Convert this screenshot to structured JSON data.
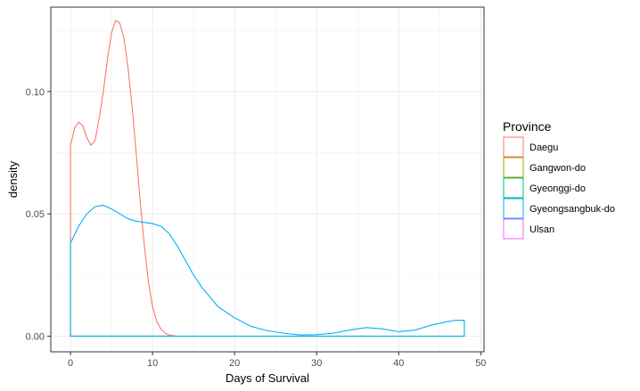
{
  "chart_data": {
    "type": "density",
    "xlabel": "Days of Survival",
    "ylabel": "density",
    "xlim": [
      -2.4,
      50.4
    ],
    "ylim": [
      -0.0064,
      0.1345
    ],
    "x_ticks": [
      0,
      10,
      20,
      30,
      40,
      50
    ],
    "x_tick_labels": [
      "0",
      "10",
      "20",
      "30",
      "40",
      "50"
    ],
    "y_ticks": [
      0.0,
      0.05,
      0.1
    ],
    "y_tick_labels": [
      "0.00",
      "0.05",
      "0.10"
    ],
    "grid": true,
    "legend": {
      "title": "Province",
      "position": "right",
      "entries": [
        {
          "label": "Daegu",
          "color": "#F8766D"
        },
        {
          "label": "Gangwon-do",
          "color": "#A3A500"
        },
        {
          "label": "Gyeonggi-do",
          "color": "#00BF7D"
        },
        {
          "label": "Gyeongsangbuk-do",
          "color": "#00B0F6"
        },
        {
          "label": "Ulsan",
          "color": "#E76BF3"
        }
      ]
    },
    "series": [
      {
        "name": "Daegu",
        "color": "#F8766D",
        "x": [
          0,
          0.5,
          1,
          1.5,
          2,
          2.5,
          3,
          3.5,
          4,
          4.5,
          5,
          5.5,
          6,
          6.5,
          7,
          7.5,
          8,
          8.5,
          9,
          9.5,
          10,
          10.5,
          11,
          11.5,
          12,
          12.5,
          13
        ],
        "y": [
          0.078,
          0.085,
          0.0875,
          0.086,
          0.081,
          0.078,
          0.08,
          0.089,
          0.1,
          0.113,
          0.124,
          0.129,
          0.128,
          0.122,
          0.11,
          0.094,
          0.075,
          0.055,
          0.037,
          0.022,
          0.012,
          0.006,
          0.003,
          0.0013,
          0.0005,
          0.0002,
          0.0
        ]
      },
      {
        "name": "Gyeongsangbuk-do",
        "color": "#00B0F6",
        "x": [
          0,
          1,
          2,
          3,
          4,
          5,
          6,
          7,
          8,
          9,
          10,
          11,
          12,
          13,
          14,
          15,
          16,
          17,
          18,
          20,
          22,
          24,
          26,
          28,
          30,
          32,
          34,
          36,
          38,
          40,
          42,
          44,
          46,
          47,
          48
        ],
        "y": [
          0.038,
          0.045,
          0.05,
          0.053,
          0.0535,
          0.052,
          0.05,
          0.048,
          0.047,
          0.0465,
          0.046,
          0.045,
          0.042,
          0.037,
          0.031,
          0.025,
          0.02,
          0.016,
          0.012,
          0.0075,
          0.004,
          0.0022,
          0.0012,
          0.0005,
          0.0006,
          0.0012,
          0.0025,
          0.0035,
          0.003,
          0.0018,
          0.0025,
          0.0045,
          0.006,
          0.0065,
          0.0065
        ]
      }
    ]
  }
}
